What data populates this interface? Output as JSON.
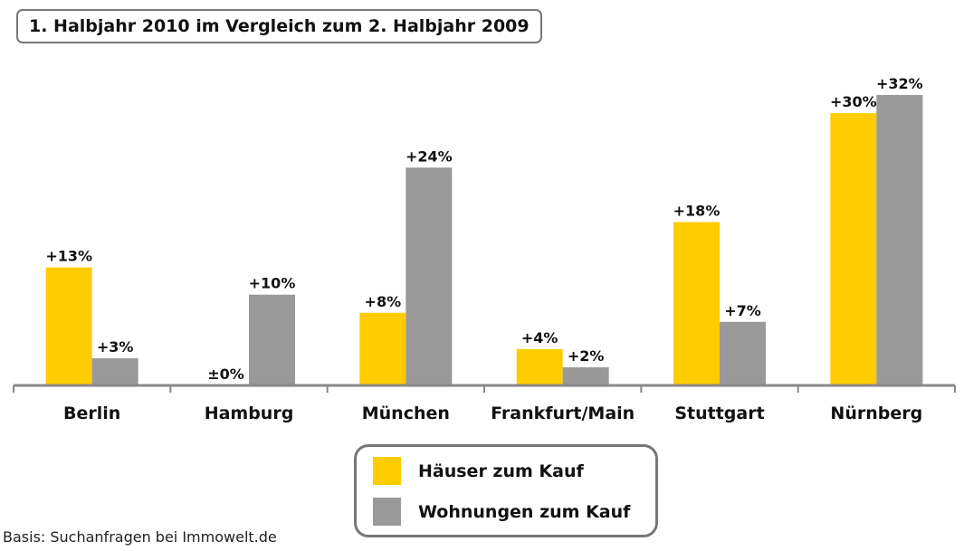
{
  "chart_data": {
    "type": "bar",
    "title": "1. Halbjahr 2010 im Vergleich zum 2. Halbjahr 2009",
    "categories": [
      "Berlin",
      "Hamburg",
      "München",
      "Frankfurt/Main",
      "Stuttgart",
      "Nürnberg"
    ],
    "series": [
      {
        "name": "Häuser zum Kauf",
        "color": "#FFCC00",
        "values": [
          13,
          0,
          8,
          4,
          18,
          30
        ],
        "labels": [
          "+13%",
          "±0%",
          "+8%",
          "+4%",
          "+18%",
          "+30%"
        ]
      },
      {
        "name": "Wohnungen zum Kauf",
        "color": "#999999",
        "values": [
          3,
          10,
          24,
          2,
          7,
          32
        ],
        "labels": [
          "+3%",
          "+10%",
          "+24%",
          "+2%",
          "+7%",
          "+32%"
        ]
      }
    ],
    "ylim": [
      0,
      32
    ],
    "grid": false,
    "legend": "bottom-center",
    "footnote": "Basis: Suchanfragen bei Immowelt.de"
  }
}
